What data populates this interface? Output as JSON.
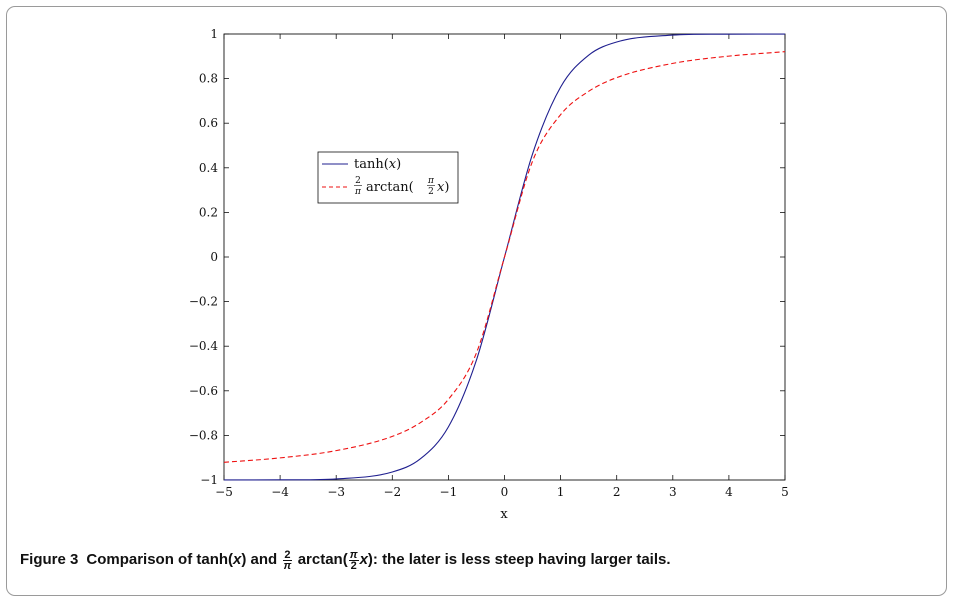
{
  "chart_data": {
    "type": "line",
    "xlabel": "x",
    "ylabel": "",
    "title": "",
    "xlim": [
      -5,
      5
    ],
    "ylim": [
      -1,
      1
    ],
    "xticks": [
      -5,
      -4,
      -3,
      -2,
      -1,
      0,
      1,
      2,
      3,
      4,
      5
    ],
    "yticks": [
      -1,
      -0.8,
      -0.6,
      -0.4,
      -0.2,
      0,
      0.2,
      0.4,
      0.6,
      0.8,
      1
    ],
    "xtick_labels": [
      "−5",
      "−4",
      "−3",
      "−2",
      "−1",
      "0",
      "1",
      "2",
      "3",
      "4",
      "5"
    ],
    "ytick_labels": [
      "−1",
      "−0.8",
      "−0.6",
      "−0.4",
      "−0.2",
      "0",
      "0.2",
      "0.4",
      "0.6",
      "0.8",
      "1"
    ],
    "grid": false,
    "legend_position": "center-left",
    "x": [
      -5,
      -4,
      -3,
      -2,
      -1.5,
      -1,
      -0.5,
      0,
      0.5,
      1,
      1.5,
      2,
      3,
      4,
      5
    ],
    "series": [
      {
        "name": "tanh(x)",
        "color": "#1f1f8f",
        "style": "solid",
        "values": [
          -0.9999,
          -0.9993,
          -0.9951,
          -0.964,
          -0.9051,
          -0.7616,
          -0.4621,
          0,
          0.4621,
          0.7616,
          0.9051,
          0.964,
          0.9951,
          0.9993,
          0.9999
        ]
      },
      {
        "name": "2/π arctan(π/2 x)",
        "color": "#ee1111",
        "style": "dashed",
        "values": [
          -0.9208,
          -0.9008,
          -0.8682,
          -0.8044,
          -0.7429,
          -0.6383,
          -0.4298,
          0,
          0.4298,
          0.6383,
          0.7429,
          0.8044,
          0.8682,
          0.9008,
          0.9208
        ]
      }
    ],
    "legend": {
      "entries": [
        {
          "series": 0,
          "label": "tanh(x)",
          "base": "tanh(",
          "var": "x",
          "close": ")"
        },
        {
          "series": 1,
          "label": "2/π arctan(π/2 x)",
          "num": "2",
          "den": "π",
          "fn": "arctan(",
          "num2": "π",
          "den2": "2",
          "var": "x",
          "close": ")"
        }
      ]
    }
  },
  "caption": {
    "label": "Figure 3",
    "text_before": "Comparison of tanh(",
    "var1": "x",
    "text_mid": ") and",
    "frac1_num": "2",
    "frac1_den": "π",
    "text_arctan": "arctan(",
    "frac2_num": "π",
    "frac2_den": "2",
    "var2": "x",
    "text_after": "): the later is less steep having larger tails."
  }
}
